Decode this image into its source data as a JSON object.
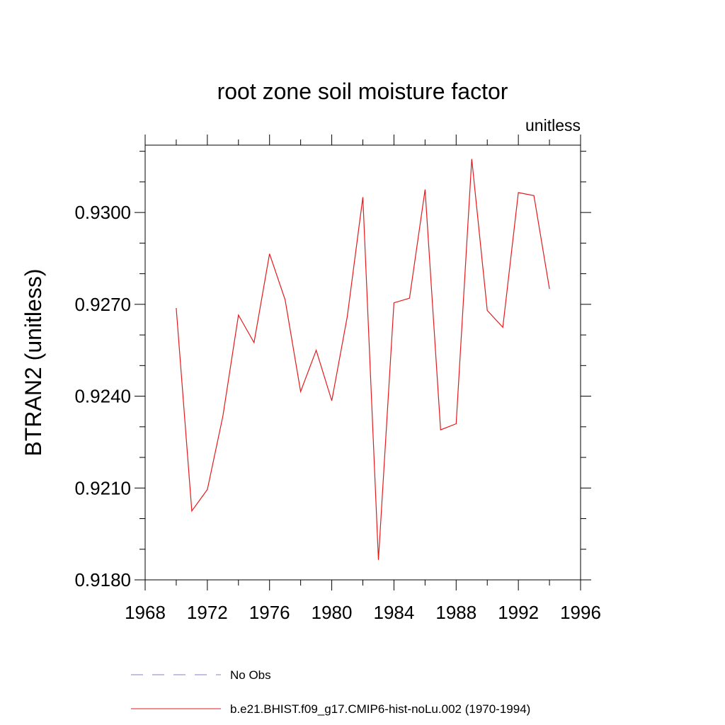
{
  "chart_data": {
    "type": "line",
    "title": "root zone soil moisture factor",
    "subtitle": "unitless",
    "ylabel": "BTRAN2  (unitless)",
    "xlabel": "",
    "xlim": [
      1968,
      1996
    ],
    "ylim": [
      0.918,
      0.9322
    ],
    "x_ticks": [
      1968,
      1972,
      1976,
      1980,
      1984,
      1988,
      1992,
      1996
    ],
    "x_tick_labels": [
      "1968",
      "1972",
      "1976",
      "1980",
      "1984",
      "1988",
      "1992",
      "1996"
    ],
    "x_minor_step": 2,
    "y_ticks": [
      0.918,
      0.921,
      0.924,
      0.927,
      0.93
    ],
    "y_tick_labels": [
      "0.9180",
      "0.9210",
      "0.9240",
      "0.9270",
      "0.9300"
    ],
    "y_minor_step": 0.001,
    "grid": false,
    "legend_position": "bottom",
    "legend": [
      {
        "label": "No Obs",
        "color": "#7f7fcf",
        "style": "dashed"
      },
      {
        "label": "b.e21.BHIST.f09_g17.CMIP6-hist-noLu.002 (1970-1994)",
        "color": "#e31a1c",
        "style": "solid"
      }
    ],
    "series": [
      {
        "name": "b.e21.BHIST.f09_g17.CMIP6-hist-noLu.002 (1970-1994)",
        "color": "#e31a1c",
        "x": [
          1970,
          1971,
          1972,
          1973,
          1974,
          1975,
          1976,
          1977,
          1978,
          1979,
          1980,
          1981,
          1982,
          1983,
          1984,
          1985,
          1986,
          1987,
          1988,
          1989,
          1990,
          1991,
          1992,
          1993,
          1994
        ],
        "y": [
          0.92688,
          0.92025,
          0.92095,
          0.92335,
          0.92665,
          0.92575,
          0.92865,
          0.92715,
          0.92415,
          0.9255,
          0.92385,
          0.9266,
          0.9305,
          0.91865,
          0.92705,
          0.9272,
          0.93075,
          0.9229,
          0.9231,
          0.93175,
          0.9268,
          0.92625,
          0.93065,
          0.93055,
          0.9275
        ]
      }
    ]
  }
}
